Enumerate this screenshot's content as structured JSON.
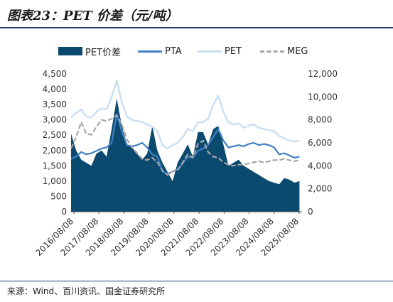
{
  "title": "图表23：PET 价差（元/吨）",
  "source": "来源：Wind、百川资讯、国金证券研究所",
  "legend": {
    "items": [
      {
        "key": "pet_spread",
        "label": "PET价差",
        "color": "#0b4a6f",
        "style": "area"
      },
      {
        "key": "pta",
        "label": "PTA",
        "color": "#3f7fc4",
        "style": "line"
      },
      {
        "key": "pet",
        "label": "PET",
        "color": "#c8dff2",
        "style": "line"
      },
      {
        "key": "meg",
        "label": "MEG",
        "color": "#a6a6a6",
        "style": "dashed"
      }
    ]
  },
  "chart_data": {
    "type": "line",
    "x_labels": [
      "2016/08/08",
      "2017/08/08",
      "2018/08/08",
      "2019/08/08",
      "2020/08/08",
      "2021/08/08",
      "2022/08/08",
      "2023/08/08",
      "2024/08/08",
      "2025/08/08"
    ],
    "left_axis": {
      "min": 0,
      "max": 4500,
      "ticks": [
        "0",
        "500",
        "1,000",
        "1,500",
        "2,000",
        "2,500",
        "3,000",
        "3,500",
        "4,000",
        "4,500"
      ]
    },
    "right_axis": {
      "min": 0,
      "max": 12000,
      "ticks": [
        "0",
        "2,000",
        "4,000",
        "6,000",
        "8,000",
        "10,000",
        "12,000"
      ]
    },
    "grid": false,
    "legend_position": "top",
    "x_range": [
      2016.6,
      2025.7
    ],
    "series": [
      {
        "name": "PET价差",
        "axis": "left",
        "type": "area",
        "color": "#0b4a6f",
        "x": [
          2016.6,
          2016.8,
          2017.0,
          2017.2,
          2017.4,
          2017.6,
          2017.8,
          2018.0,
          2018.2,
          2018.4,
          2018.6,
          2018.8,
          2019.0,
          2019.2,
          2019.4,
          2019.6,
          2019.8,
          2020.0,
          2020.2,
          2020.4,
          2020.6,
          2020.8,
          2021.0,
          2021.2,
          2021.4,
          2021.6,
          2021.8,
          2022.0,
          2022.2,
          2022.4,
          2022.6,
          2022.8,
          2023.0,
          2023.2,
          2023.4,
          2023.6,
          2023.8,
          2024.0,
          2024.2,
          2024.4,
          2024.6,
          2024.8,
          2025.0,
          2025.2,
          2025.4,
          2025.6
        ],
        "y": [
          2550,
          2000,
          1700,
          1600,
          1500,
          1900,
          2000,
          1800,
          2700,
          3700,
          2800,
          2200,
          2100,
          1900,
          1700,
          1900,
          2800,
          2000,
          1600,
          1300,
          1000,
          1600,
          1900,
          2200,
          1800,
          2600,
          2600,
          2200,
          2700,
          2800,
          2200,
          1500,
          1600,
          1700,
          1500,
          1400,
          1300,
          1200,
          1100,
          1000,
          950,
          900,
          1100,
          1050,
          950,
          1000
        ]
      },
      {
        "name": "PTA",
        "axis": "right",
        "type": "line",
        "color": "#3f7fc4",
        "x": [
          2016.6,
          2016.8,
          2017.0,
          2017.2,
          2017.4,
          2017.6,
          2017.8,
          2018.0,
          2018.2,
          2018.4,
          2018.6,
          2018.8,
          2019.0,
          2019.2,
          2019.4,
          2019.6,
          2019.8,
          2020.0,
          2020.2,
          2020.4,
          2020.6,
          2020.8,
          2021.0,
          2021.2,
          2021.4,
          2021.6,
          2021.8,
          2022.0,
          2022.2,
          2022.4,
          2022.6,
          2022.8,
          2023.0,
          2023.2,
          2023.4,
          2023.6,
          2023.8,
          2024.0,
          2024.2,
          2024.4,
          2024.6,
          2024.8,
          2025.0,
          2025.2,
          2025.4,
          2025.6
        ],
        "y": [
          4600,
          4800,
          5200,
          5000,
          5100,
          5300,
          5500,
          5600,
          6000,
          8500,
          7000,
          5800,
          5700,
          5800,
          6000,
          5600,
          5000,
          4800,
          3500,
          3300,
          3500,
          3700,
          4200,
          4800,
          4700,
          5300,
          5500,
          5800,
          6500,
          7200,
          6200,
          5600,
          5700,
          5800,
          5700,
          5900,
          6000,
          5800,
          5900,
          5800,
          5600,
          5000,
          5100,
          4900,
          4700,
          4800
        ]
      },
      {
        "name": "PET",
        "axis": "right",
        "type": "line",
        "color": "#c8dff2",
        "x": [
          2016.6,
          2016.8,
          2017.0,
          2017.2,
          2017.4,
          2017.6,
          2017.8,
          2018.0,
          2018.2,
          2018.4,
          2018.6,
          2018.8,
          2019.0,
          2019.2,
          2019.4,
          2019.6,
          2019.8,
          2020.0,
          2020.2,
          2020.4,
          2020.6,
          2020.8,
          2021.0,
          2021.2,
          2021.4,
          2021.6,
          2021.8,
          2022.0,
          2022.2,
          2022.4,
          2022.6,
          2022.8,
          2023.0,
          2023.2,
          2023.4,
          2023.6,
          2023.8,
          2024.0,
          2024.2,
          2024.4,
          2024.6,
          2024.8,
          2025.0,
          2025.2,
          2025.4,
          2025.6
        ],
        "y": [
          8200,
          8600,
          8900,
          8300,
          8200,
          8700,
          9000,
          8900,
          10000,
          11400,
          9500,
          8300,
          8000,
          7900,
          7800,
          7600,
          7400,
          7000,
          5800,
          5500,
          5800,
          6000,
          6500,
          7200,
          7000,
          7800,
          7800,
          8100,
          9300,
          10100,
          8700,
          7800,
          7600,
          7700,
          7300,
          7500,
          7600,
          7300,
          7200,
          7100,
          7000,
          6600,
          6400,
          6200,
          6100,
          6200
        ]
      },
      {
        "name": "MEG",
        "axis": "right",
        "type": "dashed",
        "color": "#a6a6a6",
        "x": [
          2016.6,
          2016.8,
          2017.0,
          2017.2,
          2017.4,
          2017.6,
          2017.8,
          2018.0,
          2018.2,
          2018.4,
          2018.6,
          2018.8,
          2019.0,
          2019.2,
          2019.4,
          2019.6,
          2019.8,
          2020.0,
          2020.2,
          2020.4,
          2020.6,
          2020.8,
          2021.0,
          2021.2,
          2021.4,
          2021.6,
          2021.8,
          2022.0,
          2022.2,
          2022.4,
          2022.6,
          2022.8,
          2023.0,
          2023.2,
          2023.4,
          2023.6,
          2023.8,
          2024.0,
          2024.2,
          2024.4,
          2024.6,
          2024.8,
          2025.0,
          2025.2,
          2025.4,
          2025.6
        ],
        "y": [
          5500,
          6500,
          7800,
          6800,
          6700,
          7400,
          8000,
          7900,
          8100,
          8400,
          7600,
          6300,
          5600,
          5100,
          4600,
          4500,
          4700,
          4300,
          3600,
          3200,
          3500,
          3600,
          4300,
          5000,
          4700,
          5900,
          6200,
          5200,
          4800,
          4700,
          4300,
          4100,
          4000,
          4100,
          4100,
          4200,
          4300,
          4400,
          4300,
          4400,
          4500,
          4500,
          4600,
          4500,
          4400,
          4500
        ]
      }
    ]
  }
}
